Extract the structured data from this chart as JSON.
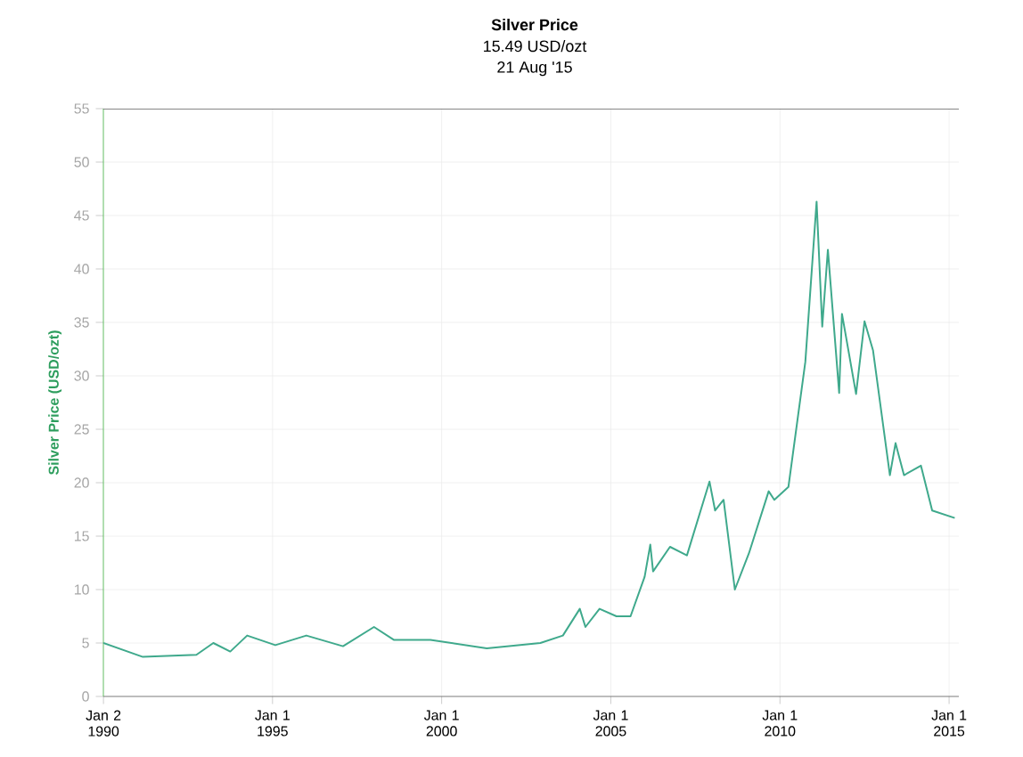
{
  "chart_data": {
    "type": "line",
    "title": "Silver Price",
    "subtitle": "15.49 USD/ozt",
    "annotations": [
      "21 Aug '15"
    ],
    "ylabel": "Silver Price (USD/ozt)",
    "x": [
      "1990-01",
      "1991-03",
      "1992-10",
      "1993-04",
      "1993-10",
      "1994-04",
      "1995-02",
      "1996-01",
      "1997-02",
      "1998-01",
      "1998-08",
      "1999-09",
      "2001-05",
      "2002-12",
      "2003-08",
      "2004-02",
      "2004-04",
      "2004-09",
      "2005-03",
      "2005-08",
      "2006-01",
      "2006-03",
      "2006-04",
      "2006-10",
      "2007-04",
      "2007-12",
      "2008-02",
      "2008-05",
      "2008-09",
      "2009-02",
      "2009-09",
      "2009-11",
      "2010-04",
      "2010-10",
      "2011-02",
      "2011-04",
      "2011-06",
      "2011-10",
      "2011-11",
      "2012-04",
      "2012-07",
      "2012-10",
      "2013-04",
      "2013-06",
      "2013-09",
      "2014-03",
      "2014-07",
      "2015-03"
    ],
    "series": [
      {
        "color": "#3fa98c",
        "values": [
          5.0,
          3.7,
          3.9,
          5.0,
          4.2,
          5.7,
          4.8,
          5.7,
          4.7,
          6.5,
          5.3,
          5.3,
          4.5,
          5.0,
          5.7,
          8.2,
          6.5,
          8.2,
          7.5,
          7.5,
          11.2,
          14.2,
          11.7,
          14.0,
          13.2,
          20.1,
          17.4,
          18.4,
          10.0,
          13.4,
          19.2,
          18.4,
          19.6,
          31.3,
          46.3,
          34.6,
          41.8,
          28.4,
          35.8,
          28.3,
          35.1,
          32.4,
          20.7,
          23.7,
          20.7,
          21.6,
          17.4,
          16.7
        ]
      }
    ],
    "xlim": [
      "1990-01-01",
      "2015-04-15"
    ],
    "xticks": [
      {
        "value": "1990-01-02",
        "label": "Jan 2 1990"
      },
      {
        "value": "1995-01-01",
        "label": "Jan 1 1995"
      },
      {
        "value": "2000-01-01",
        "label": "Jan 1 2000"
      },
      {
        "value": "2005-01-01",
        "label": "Jan 1 2005"
      },
      {
        "value": "2010-01-01",
        "label": "Jan 1 2010"
      },
      {
        "value": "2015-01-01",
        "label": "Jan 1 2015"
      }
    ],
    "ylim": [
      0,
      55
    ],
    "yticks": [
      0,
      5,
      10,
      15,
      20,
      25,
      30,
      35,
      40,
      45,
      50,
      55
    ],
    "grid": true,
    "marker": "none",
    "line_style": "solid"
  }
}
